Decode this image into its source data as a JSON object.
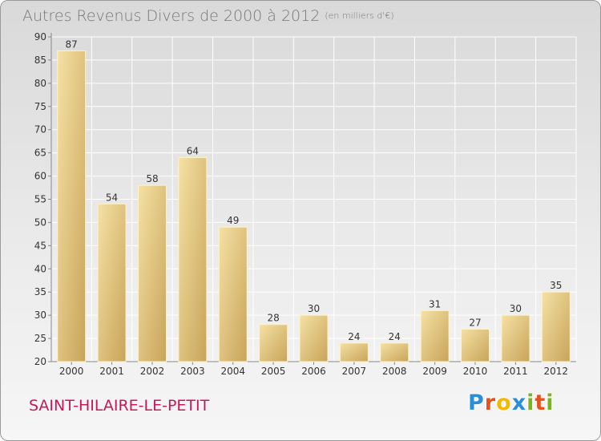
{
  "page": {
    "title": "Autres Revenus Divers de 2000 à 2012",
    "subtitle": "(en milliers d'€)",
    "commune": "SAINT-HILAIRE-LE-PETIT",
    "logo": {
      "letters": [
        "P",
        "r",
        "o",
        "x",
        "i",
        "t",
        "i"
      ],
      "colors": [
        "#2a8fd6",
        "#e8511c",
        "#f5b800",
        "#2a8fd6",
        "#7ab51d",
        "#e8511c",
        "#7ab51d"
      ]
    }
  },
  "chart_data": {
    "type": "bar",
    "categories": [
      "2000",
      "2001",
      "2002",
      "2003",
      "2004",
      "2005",
      "2006",
      "2007",
      "2008",
      "2009",
      "2010",
      "2011",
      "2012"
    ],
    "values": [
      87,
      54,
      58,
      64,
      49,
      28,
      30,
      24,
      24,
      31,
      27,
      30,
      35
    ],
    "ylim": [
      20,
      90
    ],
    "yticks": [
      20,
      25,
      30,
      35,
      40,
      45,
      50,
      55,
      60,
      65,
      70,
      75,
      80,
      85,
      90
    ],
    "grid": true,
    "bar_colors": {
      "light": "#f3dc9a",
      "dark": "#c8a45a"
    },
    "title_color": "#777777",
    "commune_color": "#c8185a"
  }
}
